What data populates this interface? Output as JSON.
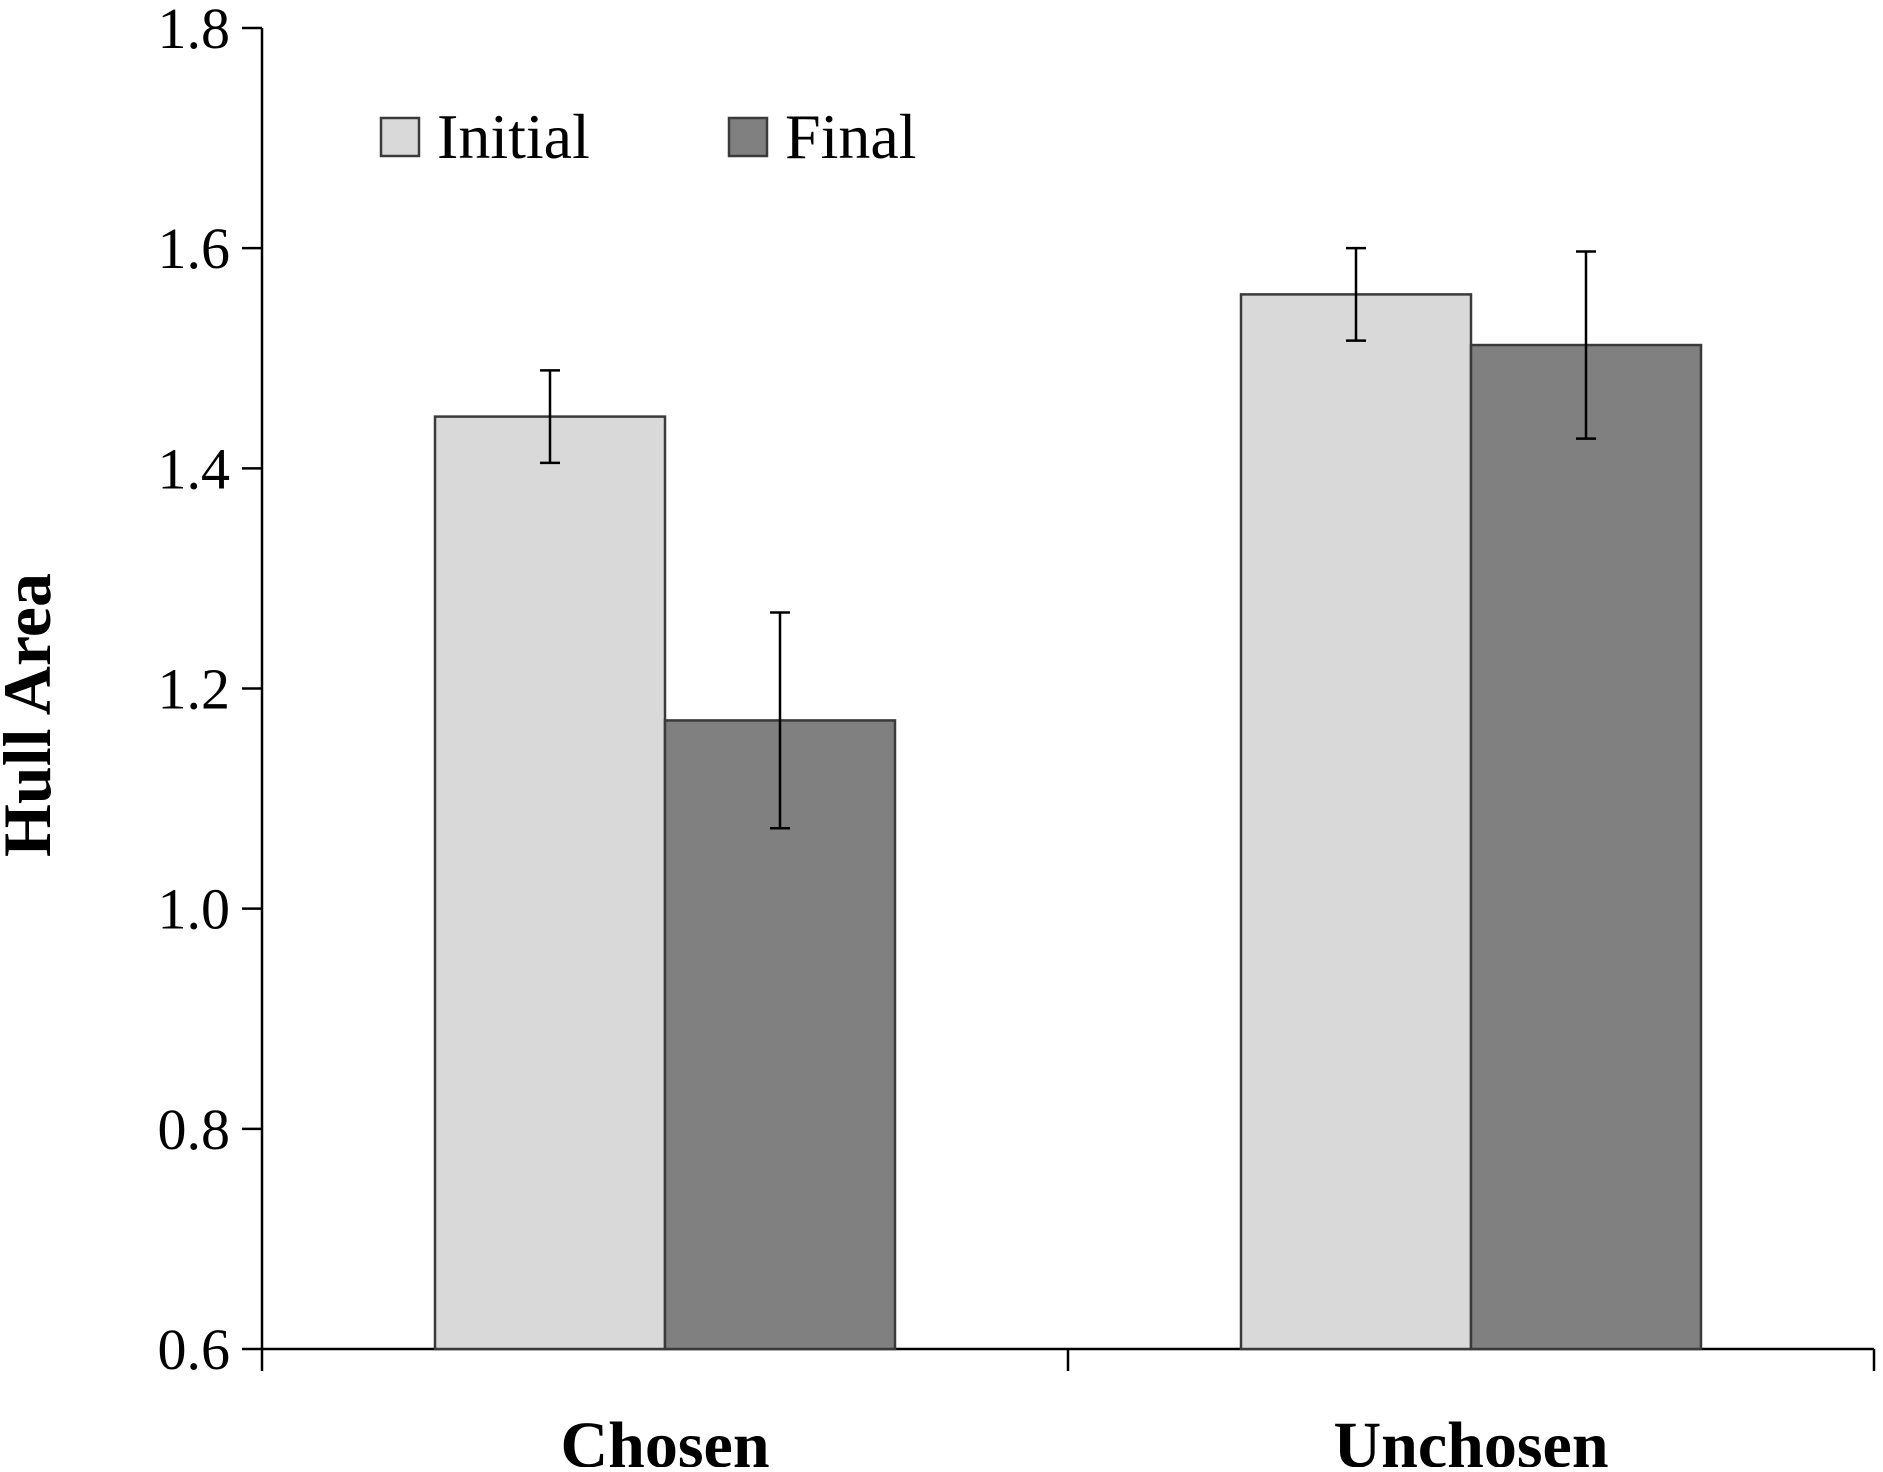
{
  "chart_data": {
    "type": "bar",
    "categories": [
      "Chosen",
      "Unchosen"
    ],
    "series": [
      {
        "name": "Initial",
        "color": "#d9d9d9",
        "values": [
          1.447,
          1.558
        ],
        "errors": [
          0.042,
          0.042
        ]
      },
      {
        "name": "Final",
        "color": "#808080",
        "values": [
          1.171,
          1.512
        ],
        "errors": [
          0.098,
          0.085
        ]
      }
    ],
    "ylabel": "Hull Area",
    "xlabel": "",
    "ylim": [
      0.6,
      1.8
    ],
    "yticks": [
      "0.6",
      "0.8",
      "1.0",
      "1.2",
      "1.4",
      "1.6",
      "1.8"
    ],
    "grid": false,
    "legend_position": "top-left"
  }
}
